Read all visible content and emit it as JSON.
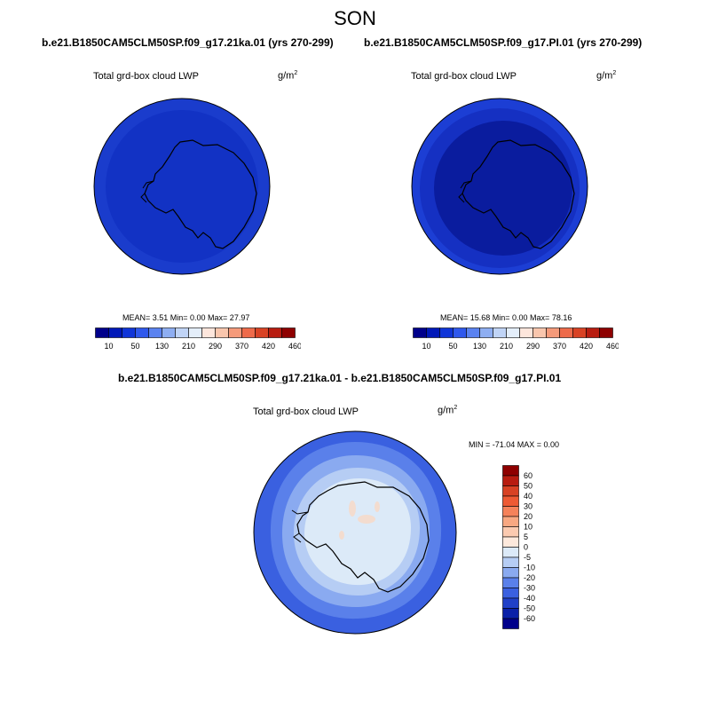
{
  "figure": {
    "season": "SON"
  },
  "panels": [
    {
      "id": "top-left",
      "title": "b.e21.B1850CAM5CLM50SP.f09_g17.21ka.01 (yrs 270-299)",
      "variable": "Total grd-box cloud LWP",
      "units_base": "g/m",
      "units_exp": "2",
      "stats_text": "MEAN=   3.51  Min=   0.00  Max=  27.97"
    },
    {
      "id": "top-right",
      "title": "b.e21.B1850CAM5CLM50SP.f09_g17.PI.01 (yrs 270-299)",
      "variable": "Total grd-box cloud LWP",
      "units_base": "g/m",
      "units_exp": "2",
      "stats_text": "MEAN=  15.68  Min=   0.00  Max=  78.16"
    },
    {
      "id": "bottom-diff",
      "title": "b.e21.B1850CAM5CLM50SP.f09_g17.21ka.01 - b.e21.B1850CAM5CLM50SP.f09_g17.PI.01",
      "variable": "Total grd-box cloud LWP",
      "units_base": "g/m",
      "units_exp": "2",
      "stats_text": "MIN = -71.04 MAX =   0.00"
    }
  ],
  "colorbar_abs": {
    "labels": [
      "10",
      "50",
      "130",
      "210",
      "290",
      "370",
      "420",
      "460"
    ],
    "colors": [
      "#00008b",
      "#0018b8",
      "#1035d8",
      "#2f58ec",
      "#5a82f0",
      "#8eaef2",
      "#c0d4f6",
      "#e4eefa",
      "#fde6dc",
      "#f9c6ad",
      "#f59a7a",
      "#ee6a4a",
      "#d84224",
      "#b81c10",
      "#8e0000"
    ]
  },
  "colorbar_diff": {
    "labels": [
      "60",
      "50",
      "40",
      "30",
      "20",
      "10",
      "5",
      "0",
      "-5",
      "-10",
      "-20",
      "-30",
      "-40",
      "-50",
      "-60"
    ],
    "colors": [
      "#8e0000",
      "#b81c10",
      "#d84224",
      "#ee5a34",
      "#f5825a",
      "#f8a882",
      "#fbcab0",
      "#fde9dc",
      "#dceaf8",
      "#b6cdf4",
      "#8aaaf0",
      "#5a80ea",
      "#3a60e0",
      "#2040c8",
      "#0a20a8",
      "#00008b"
    ]
  }
}
